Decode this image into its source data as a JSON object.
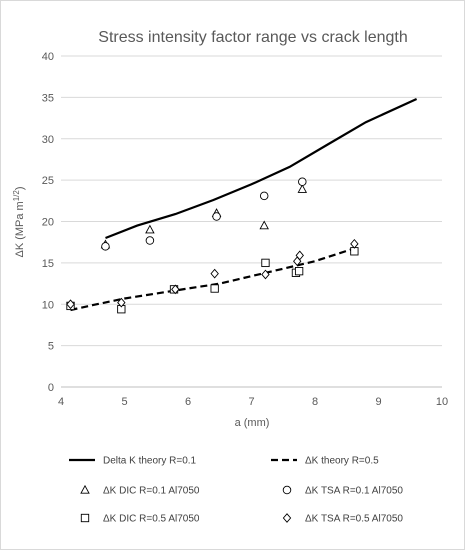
{
  "chart_data": {
    "type": "scatter",
    "title": "Stress intensity factor range vs crack length",
    "xlabel": "a (mm)",
    "ylabel_main": "ΔK (MPa m",
    "ylabel_sup": "1/2",
    "ylabel_close": ")",
    "xlim": [
      4,
      10
    ],
    "ylim": [
      0,
      40
    ],
    "x_ticks": [
      4,
      5,
      6,
      7,
      8,
      9,
      10
    ],
    "y_ticks": [
      0,
      5,
      10,
      15,
      20,
      25,
      30,
      35,
      40
    ],
    "x_tick_labels": [
      "4",
      "5",
      "6",
      "7",
      "8",
      "9",
      "10"
    ],
    "y_tick_labels": [
      "0",
      "5",
      "10",
      "15",
      "20",
      "25",
      "30",
      "35",
      "40"
    ],
    "grid": "horizontal",
    "legend_position": "bottom",
    "series": [
      {
        "name": "Delta K theory R=0.1",
        "kind": "line",
        "style": "solid",
        "color": "#000000",
        "points": [
          [
            4.7,
            18.0
          ],
          [
            5.2,
            19.5
          ],
          [
            5.8,
            20.9
          ],
          [
            6.4,
            22.6
          ],
          [
            7.0,
            24.5
          ],
          [
            7.6,
            26.6
          ],
          [
            8.2,
            29.3
          ],
          [
            8.8,
            32.0
          ],
          [
            9.6,
            34.8
          ]
        ]
      },
      {
        "name": "ΔK theory R=0.5",
        "kind": "line",
        "style": "dashed",
        "color": "#000000",
        "points": [
          [
            4.15,
            9.3
          ],
          [
            4.5,
            9.9
          ],
          [
            5.0,
            10.7
          ],
          [
            5.5,
            11.3
          ],
          [
            6.0,
            11.9
          ],
          [
            6.5,
            12.5
          ],
          [
            7.0,
            13.4
          ],
          [
            7.5,
            14.3
          ],
          [
            8.0,
            15.2
          ],
          [
            8.6,
            16.7
          ]
        ]
      },
      {
        "name": "ΔK DIC R=0.1 Al7050",
        "kind": "marker",
        "marker": "triangle",
        "points": [
          [
            4.7,
            17.2
          ],
          [
            5.4,
            19.0
          ],
          [
            6.45,
            21.0
          ],
          [
            7.2,
            19.5
          ],
          [
            7.8,
            23.9
          ]
        ]
      },
      {
        "name": "ΔK TSA R=0.1 Al7050",
        "kind": "marker",
        "marker": "circle",
        "points": [
          [
            4.7,
            17.0
          ],
          [
            5.4,
            17.7
          ],
          [
            6.45,
            20.6
          ],
          [
            7.2,
            23.1
          ],
          [
            7.8,
            24.8
          ]
        ]
      },
      {
        "name": "ΔK DIC R=0.5 Al7050",
        "kind": "marker",
        "marker": "square",
        "points": [
          [
            4.15,
            9.8
          ],
          [
            4.95,
            9.4
          ],
          [
            5.78,
            11.8
          ],
          [
            6.42,
            11.9
          ],
          [
            7.22,
            15.0
          ],
          [
            7.7,
            13.8
          ],
          [
            7.75,
            14.0
          ],
          [
            8.62,
            16.4
          ]
        ]
      },
      {
        "name": "ΔK TSA R=0.5 Al7050",
        "kind": "marker",
        "marker": "diamond",
        "points": [
          [
            4.15,
            10.0
          ],
          [
            4.95,
            10.2
          ],
          [
            5.8,
            11.8
          ],
          [
            6.42,
            13.7
          ],
          [
            7.22,
            13.6
          ],
          [
            7.72,
            15.2
          ],
          [
            7.76,
            15.9
          ],
          [
            8.62,
            17.3
          ]
        ]
      }
    ]
  }
}
